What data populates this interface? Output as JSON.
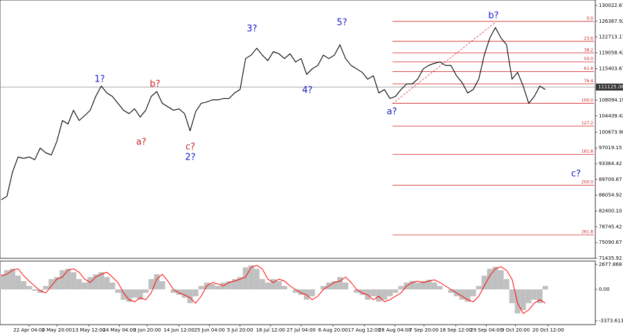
{
  "chart_data": [
    {
      "type": "line",
      "color": "#000000",
      "values": [
        85020,
        85810,
        91400,
        94910,
        94590,
        94910,
        94270,
        96990,
        95870,
        95390,
        98580,
        103370,
        102570,
        105760,
        103370,
        104490,
        105760,
        108960,
        111350,
        109750,
        108960,
        107360,
        105760,
        104970,
        106080,
        104170,
        105760,
        108960,
        110070,
        107360,
        106560,
        105760,
        106080,
        104970,
        100980,
        105440,
        107360,
        107680,
        108160,
        108160,
        108480,
        108480,
        109750,
        110550,
        117730,
        118530,
        120130,
        118530,
        117250,
        119330,
        118850,
        117730,
        118850,
        116940,
        117730,
        114060,
        115340,
        116140,
        118530,
        117730,
        118530,
        120930,
        117730,
        116140,
        115340,
        114540,
        112950,
        113740,
        109750,
        110550,
        108480,
        108960,
        110550,
        111830,
        111830,
        112950,
        115340,
        116140,
        116620,
        116940,
        116140,
        116140,
        113740,
        112150,
        109750,
        110550,
        112950,
        118530,
        122520,
        124920,
        122520,
        120930,
        112950,
        114540,
        111350,
        107360,
        108960,
        111350,
        110550
      ],
      "xlim": [
        -0.25,
        107
      ],
      "ylim": [
        71435.92,
        131300
      ],
      "yticks": [
        130022.67,
        126367.92,
        122713.17,
        119058.42,
        115403.67,
        108094.19,
        104439.42,
        {
          "value": 100673.9,
          "label": "100673.90"
        },
        97019.15,
        93364.42,
        89709.67,
        86054.92,
        {
          "value": 82400.1,
          "label": "82400.10"
        },
        78745.42,
        75090.67,
        71435.92
      ],
      "xticks": [
        {
          "value": 5,
          "label": "22 Apr 04:00"
        },
        {
          "value": 10,
          "label": "2 May 20:00"
        },
        {
          "value": 15.75,
          "label": "13 May 12:00"
        },
        {
          "value": 21.25,
          "label": "24 May 04:00"
        },
        {
          "value": 26.25,
          "label": "3 Jun 20:00"
        },
        {
          "value": 32,
          "label": "14 Jun 12:00"
        },
        {
          "value": 37.5,
          "label": "25 Jun 04:00"
        },
        {
          "value": 43,
          "label": "5 Jul 20:00"
        },
        {
          "value": 48.5,
          "label": "16 Jul 12:00"
        },
        {
          "value": 54,
          "label": "27 Jul 04:00"
        },
        {
          "value": 59.75,
          "label": "6 Aug 20:00"
        },
        {
          "value": 65.375,
          "label": "17 Aug 12:00"
        },
        {
          "value": 70.875,
          "label": "28 Aug 04:00"
        },
        {
          "value": 76.125,
          "label": "7 Sep 20:00"
        },
        {
          "value": 81.875,
          "label": "18 Sep 12:00"
        },
        {
          "value": 87.375,
          "label": "29 Sep 04:00"
        },
        {
          "value": 92.625,
          "label": "9 Oct 20:00"
        },
        {
          "value": 98.5,
          "label": "20 Oct 12:00"
        }
      ],
      "current_price": {
        "value": 111125.06,
        "label": "111125.06"
      },
      "fib_levels": [
        {
          "label": "0.0",
          "value": 126352
        },
        {
          "label": "23.6",
          "value": 121724
        },
        {
          "label": "38.2",
          "value": 119010
        },
        {
          "label": "50.0",
          "value": 116936
        },
        {
          "label": "61.8",
          "value": 114701
        },
        {
          "label": "76.4",
          "value": 111829
        },
        {
          "label": "100.0",
          "value": 107360
        },
        {
          "label": "127.2",
          "value": 102094
        },
        {
          "label": "161.8",
          "value": 95550
        },
        {
          "label": "200.0",
          "value": 88369
        },
        {
          "label": "261.8",
          "value": 76878
        }
      ],
      "annotations": [
        {
          "text": "1?",
          "color": "#1a1acc"
        },
        {
          "text": "b?",
          "color": "#cc2222"
        },
        {
          "text": "a?",
          "color": "#cc2222"
        },
        {
          "text": "c?",
          "color": "#cc2222"
        },
        {
          "text": "2?",
          "color": "#1a1acc"
        },
        {
          "text": "3?",
          "color": "#1a1acc"
        },
        {
          "text": "4?",
          "color": "#1a1acc"
        },
        {
          "text": "5?",
          "color": "#1a1acc"
        },
        {
          "text": "a?",
          "color": "#1a1acc"
        },
        {
          "text": "b?",
          "color": "#1a1acc"
        },
        {
          "text": "c?",
          "color": "#1a1acc"
        }
      ]
    },
    {
      "type": "oscillator",
      "color": "#c0c0c0",
      "values": [
        1630,
        2070,
        2220,
        1480,
        890,
        370,
        -150,
        -370,
        370,
        1110,
        1330,
        2070,
        2220,
        1850,
        1110,
        740,
        1330,
        1630,
        1850,
        1330,
        740,
        -370,
        -1110,
        -1330,
        -890,
        -1110,
        -370,
        1110,
        1630,
        890,
        0,
        -370,
        -590,
        -890,
        -1480,
        -740,
        370,
        740,
        590,
        370,
        740,
        890,
        1110,
        1330,
        2370,
        2590,
        2220,
        1110,
        740,
        1110,
        890,
        370,
        0,
        -370,
        -590,
        -1110,
        -740,
        0,
        370,
        740,
        890,
        1330,
        740,
        0,
        -370,
        -590,
        -1110,
        -740,
        -1330,
        -1110,
        -740,
        -370,
        370,
        740,
        890,
        740,
        890,
        1040,
        740,
        370,
        0,
        -370,
        -740,
        -1110,
        -1330,
        -740,
        370,
        1480,
        2220,
        2440,
        2070,
        1110,
        -1480,
        -2590,
        -2220,
        -1480,
        -1110,
        -1480,
        370
      ],
      "signal": {
        "color": "#ff0000",
        "values": [
          1480,
          1630,
          2070,
          2220,
          1480,
          890,
          370,
          -150,
          -370,
          370,
          1110,
          1330,
          2070,
          2220,
          1850,
          1110,
          740,
          1330,
          1630,
          1850,
          1330,
          740,
          -370,
          -1110,
          -1330,
          -890,
          -1110,
          -370,
          1110,
          1630,
          890,
          0,
          -370,
          -590,
          -890,
          -1480,
          -740,
          370,
          740,
          590,
          370,
          740,
          890,
          1110,
          1330,
          2370,
          2590,
          2220,
          1110,
          740,
          1110,
          890,
          370,
          0,
          -370,
          -590,
          -1110,
          -740,
          0,
          370,
          740,
          890,
          1330,
          740,
          0,
          -370,
          -590,
          -1110,
          -740,
          -1330,
          -1110,
          -740,
          -370,
          370,
          740,
          890,
          740,
          890,
          1040,
          740,
          370,
          0,
          -370,
          -740,
          -1110,
          -1330,
          -740,
          370,
          1480,
          2220,
          2440,
          2070,
          1110,
          -1480,
          -2590,
          -2220,
          -1480,
          -1110,
          -1480
        ]
      },
      "ylim": [
        -3795,
        3050
      ],
      "yticks": [
        2677.868,
        {
          "value": 0,
          "label": "0.00"
        },
        -3373.613
      ]
    }
  ]
}
